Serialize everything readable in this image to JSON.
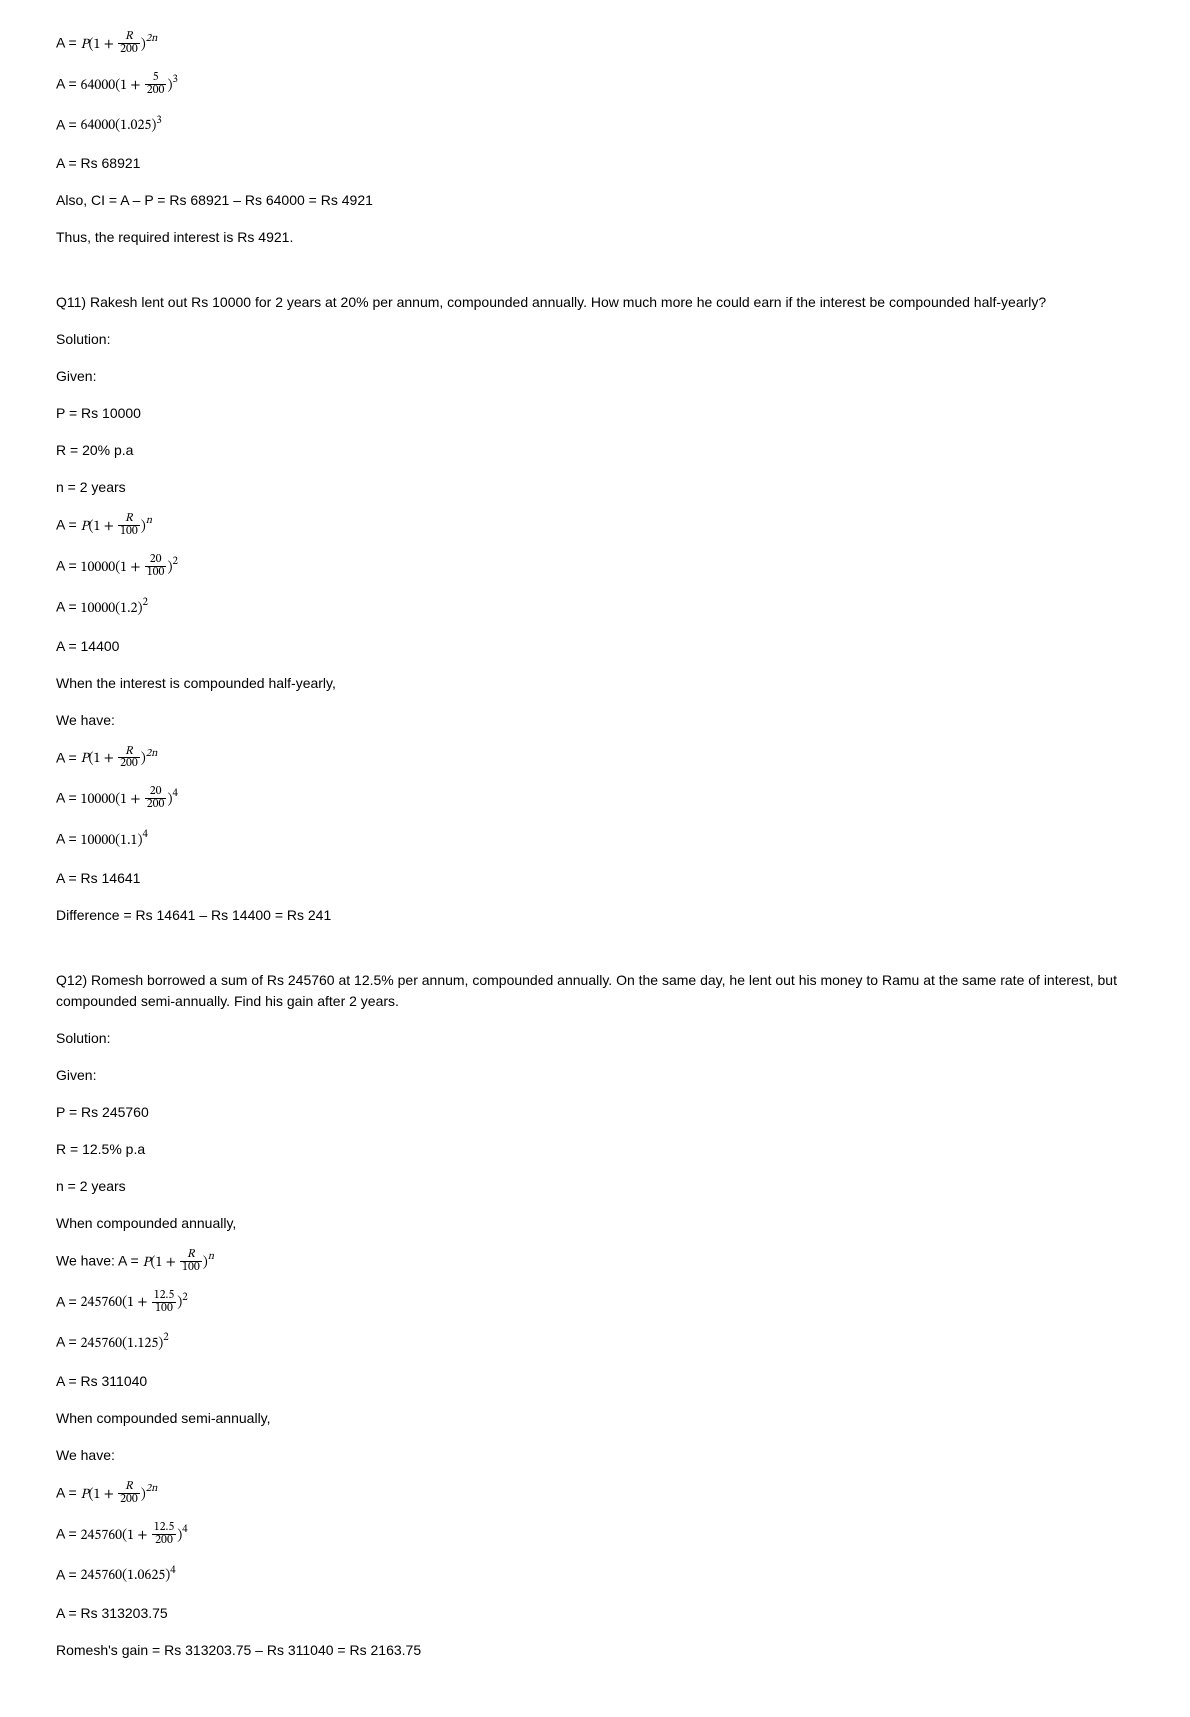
{
  "colors": {
    "background": "#ffffff",
    "text": "#000000",
    "math_font": "Cambria Math / serif"
  },
  "intro": {
    "l1_pre": "A = ",
    "l1_P": "P",
    "l1_open": "(1 + ",
    "l1_num": "R",
    "l1_den": "200",
    "l1_close": ")",
    "l1_exp": "2n",
    "l2_pre": "A = ",
    "l2_P": "64000",
    "l2_open": "(1 + ",
    "l2_num": "5",
    "l2_den": "200",
    "l2_close": ")",
    "l2_exp": "3",
    "l3_pre": "A = ",
    "l3_val": "64000(1.025)",
    "l3_exp": "3",
    "l4": "A = Rs 68921",
    "l5": "Also, CI = A – P = Rs 68921 – Rs 64000 = Rs 4921",
    "l6": "Thus, the required interest is Rs 4921."
  },
  "q11": {
    "question": "Q11) Rakesh lent out Rs 10000 for 2 years at 20% per annum, compounded annually. How much more he could earn if the interest be compounded half-yearly?",
    "solution": "Solution:",
    "given": "Given:",
    "p": "P = Rs 10000",
    "r": "R = 20% p.a",
    "n": "n = 2 years",
    "a1_pre": "A = ",
    "a1_P": "P",
    "a1_open": "(1 + ",
    "a1_num": "R",
    "a1_den": "100",
    "a1_close": ")",
    "a1_exp": "n",
    "a2_pre": "A = ",
    "a2_P": "10000",
    "a2_open": "(1 + ",
    "a2_num": "20",
    "a2_den": "100",
    "a2_close": ")",
    "a2_exp": "2",
    "a3_pre": "A = ",
    "a3_val": "10000(1.2)",
    "a3_exp": "2",
    "a4": "A = 14400",
    "half": "When the interest is compounded half-yearly,",
    "wehave": "We have:",
    "b1_pre": "A = ",
    "b1_P": "P",
    "b1_open": "(1 + ",
    "b1_num": "R",
    "b1_den": "200",
    "b1_close": ")",
    "b1_exp": "2n",
    "b2_pre": "A = ",
    "b2_P": "10000",
    "b2_open": "(1 + ",
    "b2_num": "20",
    "b2_den": "200",
    "b2_close": ")",
    "b2_exp": "4",
    "b3_pre": "A = ",
    "b3_val": "10000(1.1)",
    "b3_exp": "4",
    "b4": "A = Rs 14641",
    "diff": "Difference = Rs 14641 – Rs 14400 = Rs 241"
  },
  "q12": {
    "question": "Q12) Romesh borrowed a sum of Rs 245760 at 12.5% per annum, compounded annually. On the same day, he lent out his money to Ramu at the same rate of interest, but compounded semi-annually. Find his gain after 2 years.",
    "solution": "Solution:",
    "given": "Given:",
    "p": "P = Rs 245760",
    "r": "R = 12.5% p.a",
    "n": "n = 2 years",
    "annual": "When compounded annually,",
    "wehave_a_pre": "We have: A = ",
    "a1_P": "P",
    "a1_open": "(1 + ",
    "a1_num": "R",
    "a1_den": "100",
    "a1_close": ")",
    "a1_exp": "n",
    "a2_pre": "A = ",
    "a2_P": "245760",
    "a2_open": "(1 + ",
    "a2_num": "12.5",
    "a2_den": "100",
    "a2_close": ")",
    "a2_exp": "2",
    "a3_pre": "A = ",
    "a3_val": "245760(1.125)",
    "a3_exp": "2",
    "a4": "A = Rs 311040",
    "semi": "When compounded semi-annually,",
    "wehave_b": "We have:",
    "b1_pre": "A = ",
    "b1_P": "P",
    "b1_open": "(1 + ",
    "b1_num": "R",
    "b1_den": "200",
    "b1_close": ")",
    "b1_exp": "2n",
    "b2_pre": "A = ",
    "b2_P": "245760",
    "b2_open": "(1 + ",
    "b2_num": "12.5",
    "b2_den": "200",
    "b2_close": ")",
    "b2_exp": "4",
    "b3_pre": "A = ",
    "b3_val": "245760(1.0625)",
    "b3_exp": "4",
    "b4": "A = Rs 313203.75",
    "gain": "Romesh's gain = Rs 313203.75 – Rs 311040 = Rs 2163.75"
  }
}
